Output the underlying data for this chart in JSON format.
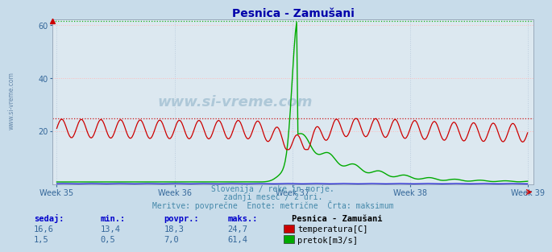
{
  "title": "Pesnica - Zamušani",
  "bg_color": "#c8dcea",
  "plot_bg_color": "#dce8f0",
  "grid_color_h": "#ffbbbb",
  "grid_color_v": "#bbccdd",
  "ylim": [
    0,
    62
  ],
  "yticks": [
    20,
    40,
    60
  ],
  "x_week_labels": [
    "Week 35",
    "Week 36",
    "Week 37",
    "Week 38",
    "Week 39"
  ],
  "x_week_positions": [
    0,
    84,
    168,
    252,
    336
  ],
  "n_points": 370,
  "temp_color": "#cc0000",
  "flow_color": "#00aa00",
  "height_color": "#0000cc",
  "temp_max": 24.7,
  "flow_max": 61.4,
  "subtitle1": "Slovenija / reke in morje.",
  "subtitle2": "zadnji mesec / 2 uri.",
  "subtitle3": "Meritve: povprečne  Enote: metrične  Črta: maksimum",
  "legend_title": "Pesnica - Zamušani",
  "legend_items": [
    "temperatura[C]",
    "pretok[m3/s]"
  ],
  "legend_colors": [
    "#cc0000",
    "#00aa00"
  ],
  "table_headers": [
    "sedaj:",
    "min.:",
    "povpr.:",
    "maks.:"
  ],
  "table_data": [
    [
      "16,6",
      "13,4",
      "18,3",
      "24,7"
    ],
    [
      "1,5",
      "0,5",
      "7,0",
      "61,4"
    ]
  ],
  "watermark": "www.si-vreme.com",
  "watermark_color": "#aec8d8",
  "left_label": "www.si-vreme.com"
}
